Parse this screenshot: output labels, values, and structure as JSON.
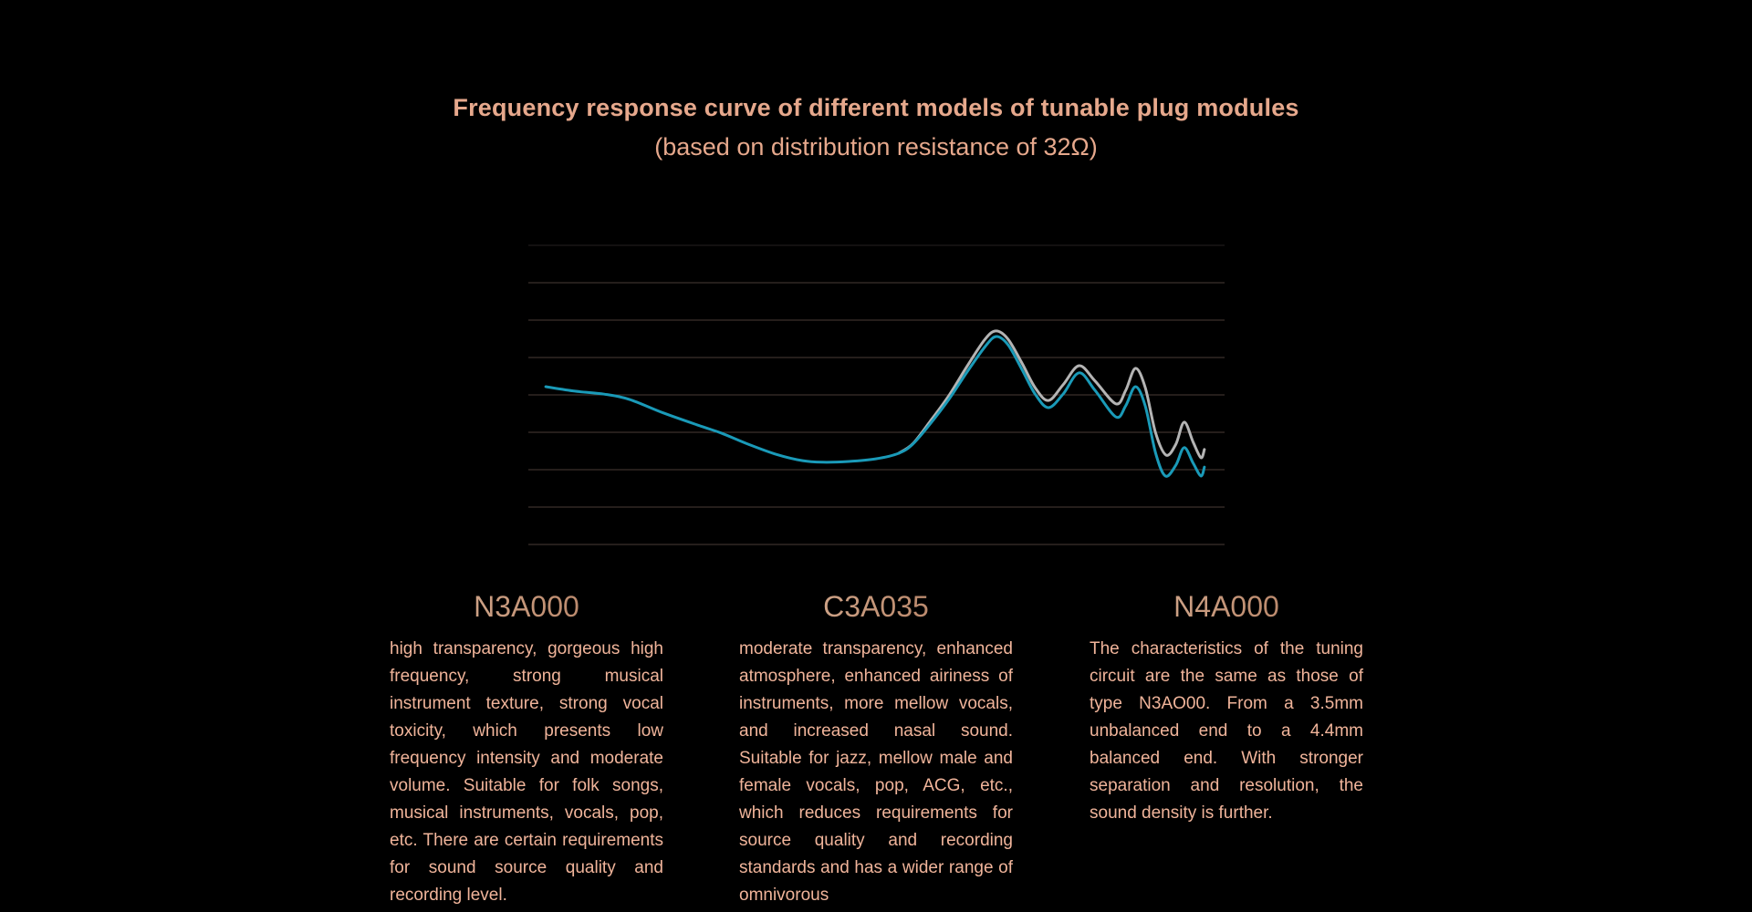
{
  "header": {
    "title": "Frequency response curve of different models of tunable plug modules",
    "subtitle": "(based on distribution resistance of 32Ω)"
  },
  "colors": {
    "accent_text": "#e6a88c",
    "teal_series": "#1a9ab8",
    "grey_series": "#b4b4b4",
    "grid": "#4a3c36"
  },
  "chart_data": {
    "type": "line",
    "title": "Frequency response curve of different models of tunable plug modules",
    "subtitle": "(based on distribution resistance of 32Ω)",
    "xlabel": "",
    "ylabel": "",
    "xlim": [
      0,
      100
    ],
    "ylim": [
      0,
      80
    ],
    "grid": true,
    "yticks": [
      0,
      10,
      20,
      30,
      40,
      50,
      60,
      70,
      80
    ],
    "legend": "none",
    "series": [
      {
        "name": "teal",
        "color": "#1a9ab8",
        "points": [
          [
            2.5,
            42.2
          ],
          [
            6.7,
            41.0
          ],
          [
            10.9,
            40.2
          ],
          [
            14.5,
            38.8
          ],
          [
            19.5,
            35.1
          ],
          [
            25.0,
            31.5
          ],
          [
            27.7,
            29.8
          ],
          [
            31.6,
            26.8
          ],
          [
            35.6,
            24.1
          ],
          [
            39.4,
            22.4
          ],
          [
            42.3,
            22.0
          ],
          [
            46.0,
            22.2
          ],
          [
            49.9,
            22.9
          ],
          [
            53.2,
            24.4
          ],
          [
            55.2,
            26.8
          ],
          [
            57.7,
            32.2
          ],
          [
            60.4,
            38.8
          ],
          [
            63.0,
            46.1
          ],
          [
            65.6,
            52.9
          ],
          [
            67.2,
            55.6
          ],
          [
            68.9,
            53.4
          ],
          [
            70.9,
            46.8
          ],
          [
            72.8,
            40.2
          ],
          [
            74.7,
            36.6
          ],
          [
            76.8,
            40.2
          ],
          [
            79.1,
            45.9
          ],
          [
            81.4,
            41.2
          ],
          [
            84.4,
            34.1
          ],
          [
            85.8,
            37.1
          ],
          [
            87.2,
            42.2
          ],
          [
            88.6,
            37.1
          ],
          [
            90.1,
            24.4
          ],
          [
            91.5,
            18.3
          ],
          [
            93.0,
            21.2
          ],
          [
            94.2,
            25.9
          ],
          [
            95.5,
            21.7
          ],
          [
            96.6,
            18.3
          ],
          [
            97.1,
            20.7
          ]
        ]
      },
      {
        "name": "grey",
        "color": "#b4b4b4",
        "points": [
          [
            53.2,
            24.4
          ],
          [
            55.2,
            26.9
          ],
          [
            57.7,
            32.9
          ],
          [
            60.4,
            39.8
          ],
          [
            63.0,
            47.6
          ],
          [
            65.6,
            54.9
          ],
          [
            67.2,
            57.1
          ],
          [
            68.9,
            54.9
          ],
          [
            70.9,
            48.5
          ],
          [
            72.8,
            41.9
          ],
          [
            74.7,
            38.5
          ],
          [
            76.8,
            42.7
          ],
          [
            79.1,
            47.8
          ],
          [
            81.4,
            43.7
          ],
          [
            84.4,
            37.6
          ],
          [
            85.8,
            41.2
          ],
          [
            87.2,
            47.1
          ],
          [
            88.6,
            42.0
          ],
          [
            90.1,
            29.8
          ],
          [
            91.6,
            23.9
          ],
          [
            93.0,
            26.8
          ],
          [
            94.2,
            32.7
          ],
          [
            95.5,
            27.3
          ],
          [
            96.6,
            23.2
          ],
          [
            97.1,
            25.4
          ]
        ]
      }
    ]
  },
  "models": [
    {
      "name": "N3A000",
      "description": "high transparency, gorgeous high frequency, strong musical instrument texture, strong vocal toxicity, which presents low frequency intensity and moderate volume. Suitable for folk songs, musical instruments, vocals, pop, etc. There are certain requirements for sound source quality and recording level."
    },
    {
      "name": "C3A035",
      "description": "moderate transparency, enhanced atmosphere, enhanced airiness of instruments, more mellow vocals, and increased nasal sound. Suitable for jazz, mellow male and female vocals, pop, ACG, etc., which reduces requirements for source quality and recording standards and has a wider range of omnivorous"
    },
    {
      "name": "N4A000",
      "description": "The characteristics of the tuning circuit are the same as those of type N3AO00. From a 3.5mm unbalanced end to a 4.4mm balanced end. With stronger separation and resolution, the sound density is further."
    }
  ]
}
